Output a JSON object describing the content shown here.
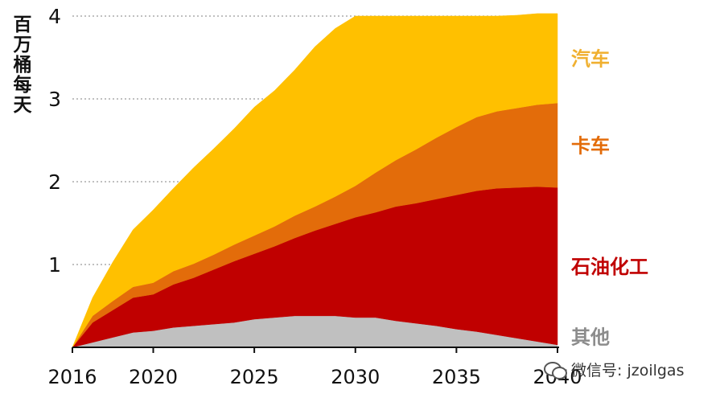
{
  "chart_data": {
    "type": "area",
    "stacked": true,
    "ylabel": "百万桶每天",
    "x": [
      2016,
      2017,
      2018,
      2019,
      2020,
      2021,
      2022,
      2023,
      2024,
      2025,
      2026,
      2027,
      2028,
      2029,
      2030,
      2031,
      2032,
      2033,
      2034,
      2035,
      2036,
      2037,
      2038,
      2039,
      2040
    ],
    "x_ticks": [
      "2016",
      "2020",
      "2025",
      "2030",
      "2035",
      "2040"
    ],
    "y_ticks": [
      "1",
      "2",
      "3",
      "4"
    ],
    "ylim": [
      0,
      4
    ],
    "xlim": [
      2016,
      2040
    ],
    "grid": "horizontal dotted",
    "series": [
      {
        "name": "其他",
        "color": "#c0c0c0",
        "label_color": "#8c8c8c",
        "values": [
          0.0,
          0.06,
          0.12,
          0.18,
          0.2,
          0.24,
          0.26,
          0.28,
          0.3,
          0.34,
          0.36,
          0.38,
          0.38,
          0.38,
          0.36,
          0.36,
          0.32,
          0.29,
          0.26,
          0.22,
          0.19,
          0.15,
          0.11,
          0.07,
          0.03
        ]
      },
      {
        "name": "石油化工",
        "color": "#c00000",
        "label_color": "#c00000",
        "values": [
          0.0,
          0.24,
          0.33,
          0.42,
          0.44,
          0.52,
          0.58,
          0.66,
          0.74,
          0.79,
          0.86,
          0.94,
          1.03,
          1.11,
          1.21,
          1.27,
          1.38,
          1.45,
          1.53,
          1.62,
          1.7,
          1.77,
          1.82,
          1.87,
          1.9
        ]
      },
      {
        "name": "卡车",
        "color": "#e36c0a",
        "label_color": "#e36c0a",
        "values": [
          0.0,
          0.08,
          0.11,
          0.13,
          0.14,
          0.16,
          0.17,
          0.18,
          0.2,
          0.22,
          0.24,
          0.27,
          0.29,
          0.33,
          0.38,
          0.48,
          0.56,
          0.65,
          0.74,
          0.82,
          0.89,
          0.93,
          0.96,
          0.99,
          1.02
        ]
      },
      {
        "name": "汽车",
        "color": "#ffc000",
        "label_color": "#f0b030",
        "values": [
          0.0,
          0.22,
          0.47,
          0.69,
          0.88,
          1.0,
          1.16,
          1.28,
          1.4,
          1.55,
          1.64,
          1.76,
          1.93,
          2.03,
          2.05,
          1.89,
          1.74,
          1.61,
          1.47,
          1.34,
          1.22,
          1.15,
          1.12,
          1.1,
          1.08
        ]
      }
    ]
  },
  "watermark": {
    "text": "微信号: jzoilgas"
  }
}
